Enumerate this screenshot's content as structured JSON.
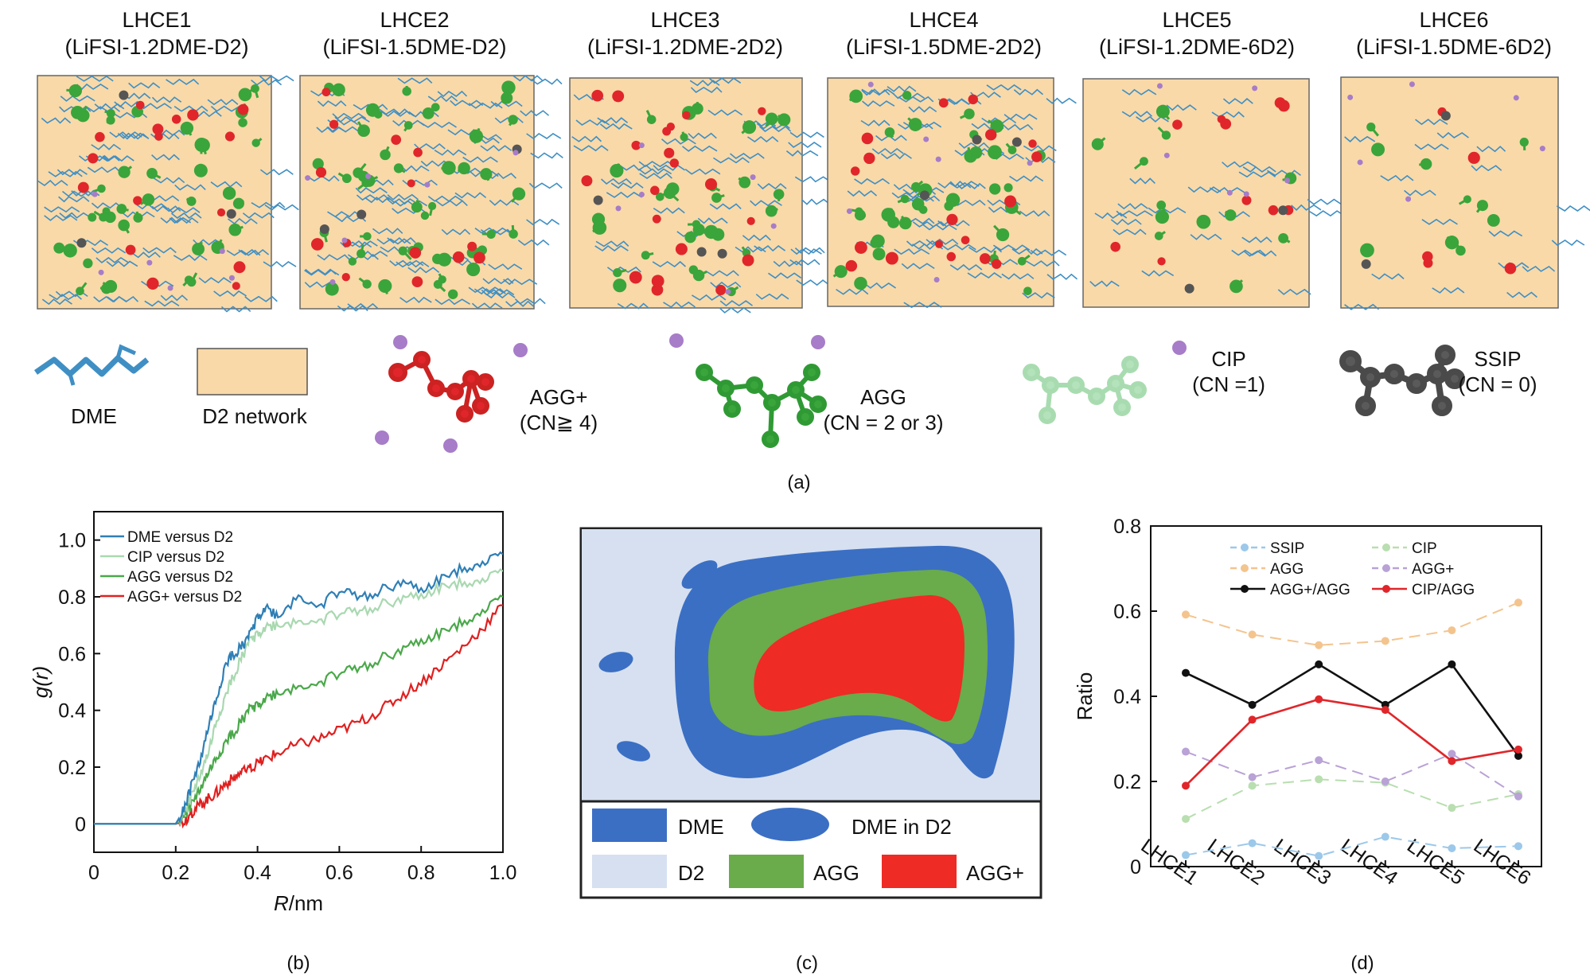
{
  "panel_a": {
    "boxes": [
      {
        "name": "LHCE1",
        "formula": "(LiFSI-1.2DME-D2)"
      },
      {
        "name": "LHCE2",
        "formula": "(LiFSI-1.5DME-D2)"
      },
      {
        "name": "LHCE3",
        "formula": "(LiFSI-1.2DME-2D2)"
      },
      {
        "name": "LHCE4",
        "formula": "(LiFSI-1.5DME-2D2)"
      },
      {
        "name": "LHCE5",
        "formula": "(LiFSI-1.2DME-6D2)"
      },
      {
        "name": "LHCE6",
        "formula": "(LiFSI-1.5DME-6D2)"
      }
    ],
    "legend": {
      "dme": "DME",
      "d2": "D2 network",
      "aggplus": "AGG+",
      "aggplus_cn": "(CN≧ 4)",
      "agg": "AGG",
      "agg_cn": "(CN = 2 or 3)",
      "cip": "CIP",
      "cip_cn": "(CN =1)",
      "ssip": "SSIP",
      "ssip_cn": "(CN = 0)"
    },
    "caption": "(a)",
    "colors": {
      "background": "#f9d9a8",
      "dme": "#3f8fc4",
      "agg": "#3aa53a",
      "aggplus": "#e0262a",
      "cip": "#a8dcb0",
      "ssip": "#555555",
      "li": "#a77cc8"
    }
  },
  "panel_b": {
    "caption": "(b)",
    "ylabel_prefix": "g(",
    "ylabel_var": "r",
    "ylabel_suffix": ")",
    "xlabel_var": "R",
    "xlabel_unit": "/nm"
  },
  "panel_c": {
    "caption": "(c)",
    "legend": {
      "dme": "DME",
      "dme_in_d2": "DME in D2",
      "d2": "D2",
      "agg": "AGG",
      "aggplus": "AGG+"
    },
    "colors": {
      "d2": "#d6e0f0",
      "dme": "#3b6fc4",
      "agg": "#6aab4c",
      "aggplus": "#ee2b25"
    }
  },
  "panel_d": {
    "caption": "(d)"
  },
  "chart_data": [
    {
      "type": "line",
      "ylabel": "g(r)",
      "xlabel": "R/nm",
      "xlim": [
        0,
        1.0
      ],
      "ylim": [
        -0.1,
        1.1
      ],
      "xticks": [
        "0",
        "0.2",
        "0.4",
        "0.6",
        "0.8",
        "1.0"
      ],
      "yticks": [
        "0",
        "0.2",
        "0.4",
        "0.6",
        "0.8",
        "1.0"
      ],
      "legend_position": "top-left",
      "series": [
        {
          "name": "DME versus D2",
          "color": "#2f7fb5",
          "x": [
            0,
            0.2,
            0.22,
            0.24,
            0.26,
            0.28,
            0.3,
            0.32,
            0.34,
            0.36,
            0.38,
            0.4,
            0.42,
            0.45,
            0.5,
            0.55,
            0.6,
            0.65,
            0.7,
            0.75,
            0.8,
            0.85,
            0.9,
            0.95,
            1.0
          ],
          "y": [
            0,
            0,
            0.05,
            0.14,
            0.22,
            0.34,
            0.44,
            0.55,
            0.6,
            0.62,
            0.66,
            0.73,
            0.76,
            0.73,
            0.8,
            0.77,
            0.82,
            0.8,
            0.82,
            0.85,
            0.82,
            0.86,
            0.9,
            0.92,
            0.95
          ]
        },
        {
          "name": "CIP versus D2",
          "color": "#a9d8b0",
          "x": [
            0,
            0.2,
            0.22,
            0.24,
            0.26,
            0.28,
            0.3,
            0.32,
            0.34,
            0.36,
            0.38,
            0.4,
            0.42,
            0.45,
            0.5,
            0.55,
            0.6,
            0.65,
            0.7,
            0.75,
            0.8,
            0.85,
            0.9,
            0.95,
            1.0
          ],
          "y": [
            0,
            0,
            0.04,
            0.1,
            0.17,
            0.25,
            0.36,
            0.44,
            0.52,
            0.58,
            0.64,
            0.67,
            0.69,
            0.7,
            0.71,
            0.72,
            0.74,
            0.75,
            0.77,
            0.79,
            0.8,
            0.83,
            0.85,
            0.86,
            0.89
          ]
        },
        {
          "name": "AGG versus D2",
          "color": "#4aa84a",
          "x": [
            0,
            0.2,
            0.22,
            0.24,
            0.26,
            0.28,
            0.3,
            0.32,
            0.34,
            0.36,
            0.38,
            0.4,
            0.42,
            0.45,
            0.5,
            0.55,
            0.6,
            0.65,
            0.7,
            0.75,
            0.8,
            0.85,
            0.9,
            0.95,
            1.0
          ],
          "y": [
            0,
            0,
            0.03,
            0.07,
            0.12,
            0.18,
            0.23,
            0.28,
            0.32,
            0.36,
            0.4,
            0.42,
            0.44,
            0.46,
            0.48,
            0.5,
            0.53,
            0.55,
            0.58,
            0.61,
            0.64,
            0.67,
            0.71,
            0.75,
            0.8
          ]
        },
        {
          "name": "AGG+ versus D2",
          "color": "#e02020",
          "x": [
            0,
            0.2,
            0.22,
            0.24,
            0.26,
            0.28,
            0.3,
            0.32,
            0.34,
            0.36,
            0.38,
            0.4,
            0.42,
            0.45,
            0.5,
            0.55,
            0.6,
            0.65,
            0.7,
            0.75,
            0.8,
            0.85,
            0.9,
            0.95,
            1.0
          ],
          "y": [
            0,
            0,
            0.01,
            0.04,
            0.07,
            0.09,
            0.11,
            0.14,
            0.16,
            0.18,
            0.19,
            0.21,
            0.23,
            0.25,
            0.28,
            0.3,
            0.33,
            0.36,
            0.4,
            0.45,
            0.5,
            0.56,
            0.62,
            0.69,
            0.77
          ]
        }
      ]
    },
    {
      "type": "line",
      "ylabel": "Ratio",
      "xlabel": "",
      "categories": [
        "LHCE1",
        "LHCE2",
        "LHCE3",
        "LHCE4",
        "LHCE5",
        "LHCE6"
      ],
      "ylim": [
        0,
        0.8
      ],
      "yticks": [
        "0",
        "0.2",
        "0.4",
        "0.6",
        "0.8"
      ],
      "legend_position": "top",
      "series": [
        {
          "name": "SSIP",
          "color": "#9cc8ea",
          "dashed": true,
          "values": [
            0.027,
            0.055,
            0.025,
            0.07,
            0.043,
            0.048
          ]
        },
        {
          "name": "CIP",
          "color": "#b9deb0",
          "dashed": true,
          "values": [
            0.112,
            0.19,
            0.205,
            0.197,
            0.138,
            0.17
          ]
        },
        {
          "name": "AGG",
          "color": "#f4c48e",
          "dashed": true,
          "values": [
            0.592,
            0.545,
            0.52,
            0.53,
            0.555,
            0.62
          ]
        },
        {
          "name": "AGG+",
          "color": "#b9a2d6",
          "dashed": true,
          "values": [
            0.27,
            0.21,
            0.25,
            0.2,
            0.265,
            0.165
          ]
        },
        {
          "name": "AGG+/AGG",
          "color": "#111111",
          "dashed": false,
          "values": [
            0.455,
            0.38,
            0.475,
            0.38,
            0.475,
            0.26
          ]
        },
        {
          "name": "CIP/AGG",
          "color": "#e0262a",
          "dashed": false,
          "values": [
            0.19,
            0.345,
            0.393,
            0.368,
            0.248,
            0.275
          ]
        }
      ]
    }
  ]
}
